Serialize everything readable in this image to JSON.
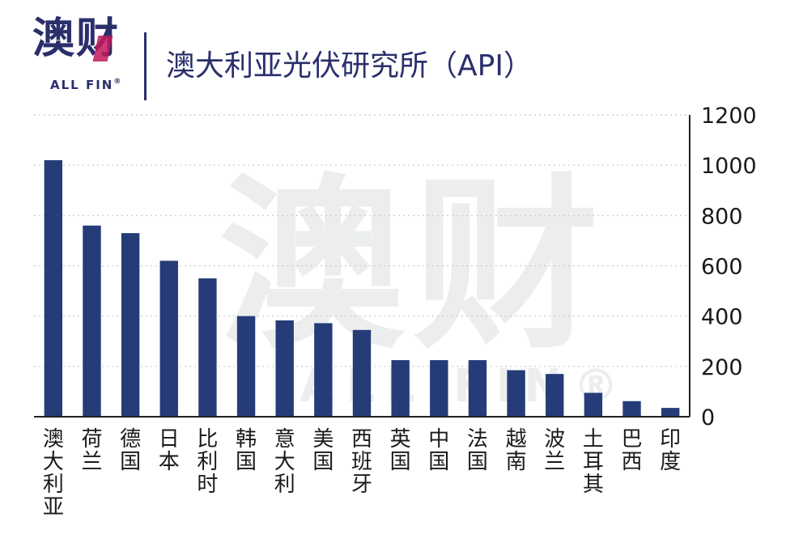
{
  "logo": {
    "main": "澳财",
    "sub": "ALL FIN",
    "reg": "®"
  },
  "title": "澳大利亚光伏研究所（API）",
  "watermark": {
    "main": "澳财",
    "sub": "ALL FIN®"
  },
  "colors": {
    "bar": "#253c78",
    "accent": "#2a2f6b",
    "grid": "#c8c8c8"
  },
  "chart_data": {
    "type": "bar",
    "title": "澳大利亚光伏研究所（API）",
    "xlabel": "",
    "ylabel": "",
    "ylim": [
      0,
      1200
    ],
    "yticks": [
      0,
      200,
      400,
      600,
      800,
      1000,
      1200
    ],
    "y_axis_position": "right",
    "grid": true,
    "categories": [
      "澳大利亚",
      "荷兰",
      "德国",
      "日本",
      "比利时",
      "韩国",
      "意大利",
      "美国",
      "西班牙",
      "英国",
      "中国",
      "法国",
      "越南",
      "波兰",
      "土耳其",
      "巴西",
      "印度"
    ],
    "values": [
      1020,
      760,
      730,
      620,
      550,
      400,
      383,
      372,
      345,
      225,
      225,
      225,
      185,
      170,
      95,
      62,
      35
    ]
  }
}
